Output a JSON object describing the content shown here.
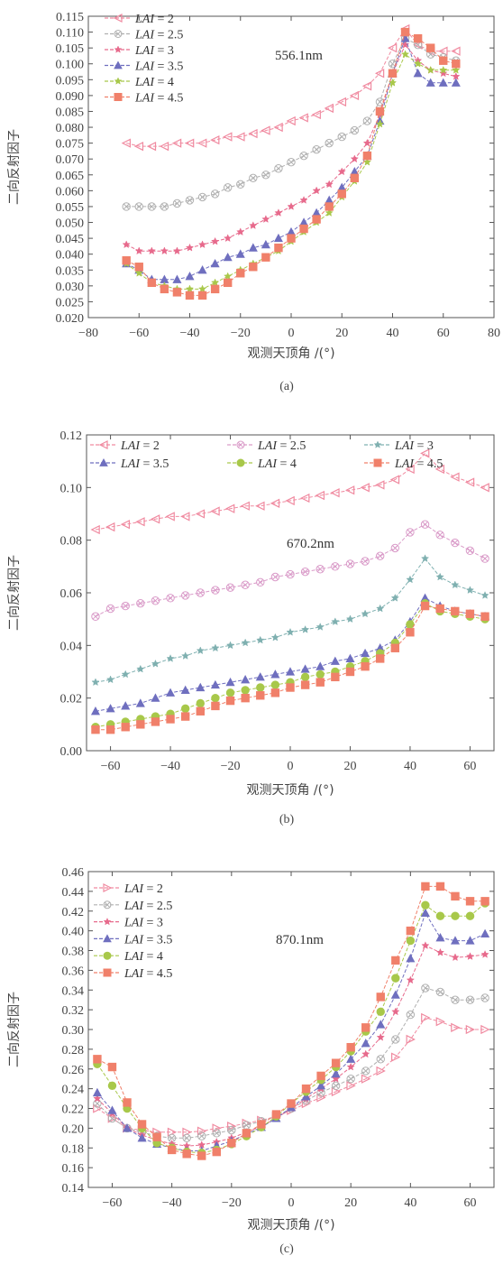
{
  "figure_captions": [
    "(a)",
    "(b)",
    "(c)"
  ],
  "chart_data": [
    {
      "type": "line",
      "annotation": "556.1nm",
      "xlabel": "观测天顶角 /(°)",
      "ylabel": "二向反射因子",
      "xlim": [
        -80,
        80
      ],
      "ylim": [
        0.02,
        0.115
      ],
      "xticks": [
        -80,
        -60,
        -40,
        -20,
        0,
        20,
        40,
        60,
        80
      ],
      "yticks": [
        0.02,
        0.025,
        0.03,
        0.035,
        0.04,
        0.045,
        0.05,
        0.055,
        0.06,
        0.065,
        0.07,
        0.075,
        0.08,
        0.085,
        0.09,
        0.095,
        0.1,
        0.105,
        0.11,
        0.115
      ],
      "legend_position": "top-left",
      "x": [
        -65,
        -60,
        -55,
        -50,
        -45,
        -40,
        -35,
        -30,
        -25,
        -20,
        -15,
        -10,
        -5,
        0,
        5,
        10,
        15,
        20,
        25,
        30,
        35,
        40,
        45,
        50,
        55,
        60,
        65
      ],
      "series": [
        {
          "name": "LAI = 2",
          "color": "#f08aa0",
          "marker": "tri-left",
          "values": [
            0.075,
            0.074,
            0.074,
            0.074,
            0.075,
            0.075,
            0.075,
            0.076,
            0.077,
            0.077,
            0.078,
            0.079,
            0.08,
            0.082,
            0.083,
            0.084,
            0.086,
            0.088,
            0.09,
            0.093,
            0.097,
            0.105,
            0.111,
            0.106,
            0.104,
            0.104,
            0.104
          ]
        },
        {
          "name": "LAI = 2.5",
          "color": "#b0b0b0",
          "marker": "x-circle",
          "values": [
            0.055,
            0.055,
            0.055,
            0.055,
            0.056,
            0.057,
            0.058,
            0.059,
            0.061,
            0.062,
            0.064,
            0.065,
            0.067,
            0.069,
            0.071,
            0.073,
            0.075,
            0.077,
            0.079,
            0.082,
            0.088,
            0.1,
            0.108,
            0.106,
            0.103,
            0.102,
            0.101
          ]
        },
        {
          "name": "LAI = 3",
          "color": "#e76a8c",
          "marker": "star",
          "values": [
            0.043,
            0.041,
            0.041,
            0.041,
            0.041,
            0.042,
            0.043,
            0.044,
            0.045,
            0.047,
            0.049,
            0.051,
            0.053,
            0.055,
            0.057,
            0.06,
            0.062,
            0.066,
            0.07,
            0.075,
            0.084,
            0.097,
            0.106,
            0.101,
            0.098,
            0.097,
            0.096
          ]
        },
        {
          "name": "LAI = 3.5",
          "color": "#6f6fbf",
          "marker": "triangle",
          "values": [
            0.037,
            0.035,
            0.032,
            0.032,
            0.032,
            0.033,
            0.035,
            0.037,
            0.039,
            0.04,
            0.042,
            0.043,
            0.045,
            0.047,
            0.05,
            0.053,
            0.057,
            0.061,
            0.066,
            0.071,
            0.082,
            0.097,
            0.108,
            0.097,
            0.094,
            0.094,
            0.094
          ]
        },
        {
          "name": "LAI = 4",
          "color": "#a8c84a",
          "marker": "star",
          "values": [
            0.037,
            0.034,
            0.031,
            0.03,
            0.029,
            0.029,
            0.029,
            0.031,
            0.033,
            0.035,
            0.037,
            0.039,
            0.041,
            0.044,
            0.047,
            0.05,
            0.053,
            0.058,
            0.063,
            0.069,
            0.081,
            0.094,
            0.103,
            0.1,
            0.098,
            0.098,
            0.098
          ]
        },
        {
          "name": "LAI = 4.5",
          "color": "#f0806a",
          "marker": "square",
          "values": [
            0.038,
            0.036,
            0.031,
            0.029,
            0.028,
            0.027,
            0.027,
            0.029,
            0.031,
            0.034,
            0.036,
            0.039,
            0.042,
            0.045,
            0.048,
            0.051,
            0.055,
            0.059,
            0.064,
            0.071,
            0.085,
            0.097,
            0.11,
            0.108,
            0.105,
            0.101,
            0.1
          ]
        }
      ]
    },
    {
      "type": "line",
      "annotation": "670.2nm",
      "xlabel": "观测天顶角 /(°)",
      "ylabel": "二向反射因子",
      "xlim": [
        -68,
        68
      ],
      "ylim": [
        0,
        0.12
      ],
      "xticks": [
        -60,
        -40,
        -20,
        0,
        20,
        40,
        60
      ],
      "yticks": [
        0.0,
        0.02,
        0.04,
        0.06,
        0.08,
        0.1,
        0.12
      ],
      "legend_position": "top",
      "x": [
        -65,
        -60,
        -55,
        -50,
        -45,
        -40,
        -35,
        -30,
        -25,
        -20,
        -15,
        -10,
        -5,
        0,
        5,
        10,
        15,
        20,
        25,
        30,
        35,
        40,
        45,
        50,
        55,
        60,
        65
      ],
      "series": [
        {
          "name": "LAI = 2",
          "color": "#f08aa0",
          "marker": "tri-left",
          "values": [
            0.084,
            0.085,
            0.086,
            0.087,
            0.088,
            0.089,
            0.089,
            0.09,
            0.091,
            0.092,
            0.093,
            0.093,
            0.094,
            0.095,
            0.096,
            0.097,
            0.098,
            0.099,
            0.1,
            0.101,
            0.103,
            0.107,
            0.113,
            0.107,
            0.104,
            0.102,
            0.1
          ]
        },
        {
          "name": "LAI = 2.5",
          "color": "#d99ac8",
          "marker": "x-circle",
          "values": [
            0.051,
            0.054,
            0.055,
            0.056,
            0.057,
            0.058,
            0.059,
            0.06,
            0.061,
            0.062,
            0.063,
            0.064,
            0.066,
            0.067,
            0.068,
            0.069,
            0.07,
            0.071,
            0.072,
            0.074,
            0.077,
            0.083,
            0.086,
            0.082,
            0.079,
            0.076,
            0.073
          ]
        },
        {
          "name": "LAI = 3",
          "color": "#7fb0b0",
          "marker": "star",
          "values": [
            0.026,
            0.027,
            0.029,
            0.031,
            0.033,
            0.035,
            0.036,
            0.038,
            0.039,
            0.04,
            0.041,
            0.042,
            0.043,
            0.045,
            0.046,
            0.047,
            0.049,
            0.05,
            0.052,
            0.054,
            0.058,
            0.065,
            0.073,
            0.066,
            0.063,
            0.061,
            0.059
          ]
        },
        {
          "name": "LAI = 3.5",
          "color": "#6f6fbf",
          "marker": "triangle",
          "values": [
            0.015,
            0.016,
            0.017,
            0.018,
            0.02,
            0.022,
            0.023,
            0.024,
            0.025,
            0.026,
            0.027,
            0.028,
            0.029,
            0.03,
            0.031,
            0.032,
            0.034,
            0.035,
            0.037,
            0.039,
            0.042,
            0.049,
            0.058,
            0.055,
            0.053,
            0.052,
            0.051
          ]
        },
        {
          "name": "LAI = 4",
          "color": "#a8c84a",
          "marker": "circle",
          "values": [
            0.009,
            0.01,
            0.011,
            0.012,
            0.013,
            0.014,
            0.016,
            0.018,
            0.02,
            0.022,
            0.023,
            0.024,
            0.025,
            0.026,
            0.028,
            0.029,
            0.03,
            0.032,
            0.034,
            0.037,
            0.041,
            0.048,
            0.056,
            0.053,
            0.052,
            0.051,
            0.05
          ]
        },
        {
          "name": "LAI = 4.5",
          "color": "#f0806a",
          "marker": "square",
          "values": [
            0.008,
            0.008,
            0.009,
            0.01,
            0.011,
            0.012,
            0.013,
            0.015,
            0.017,
            0.019,
            0.02,
            0.021,
            0.022,
            0.024,
            0.025,
            0.026,
            0.028,
            0.03,
            0.032,
            0.035,
            0.039,
            0.045,
            0.055,
            0.054,
            0.053,
            0.052,
            0.051
          ]
        }
      ]
    },
    {
      "type": "line",
      "annotation": "870.1nm",
      "xlabel": "观测天顶角 /(°)",
      "ylabel": "二向反射因子",
      "xlim": [
        -68,
        68
      ],
      "ylim": [
        0.14,
        0.46
      ],
      "xticks": [
        -60,
        -40,
        -20,
        0,
        20,
        40,
        60
      ],
      "yticks": [
        0.14,
        0.16,
        0.18,
        0.2,
        0.22,
        0.24,
        0.26,
        0.28,
        0.3,
        0.32,
        0.34,
        0.36,
        0.38,
        0.4,
        0.42,
        0.44,
        0.46
      ],
      "legend_position": "top-left",
      "x": [
        -65,
        -60,
        -55,
        -50,
        -45,
        -40,
        -35,
        -30,
        -25,
        -20,
        -15,
        -10,
        -5,
        0,
        5,
        10,
        15,
        20,
        25,
        30,
        35,
        40,
        45,
        50,
        55,
        60,
        65
      ],
      "series": [
        {
          "name": "LAI = 2",
          "color": "#f08aa0",
          "marker": "tri-right",
          "values": [
            0.22,
            0.21,
            0.2,
            0.198,
            0.196,
            0.196,
            0.196,
            0.197,
            0.2,
            0.202,
            0.205,
            0.208,
            0.212,
            0.218,
            0.225,
            0.231,
            0.237,
            0.243,
            0.25,
            0.258,
            0.272,
            0.29,
            0.312,
            0.308,
            0.302,
            0.3,
            0.3
          ]
        },
        {
          "name": "LAI = 2.5",
          "color": "#b0b0b0",
          "marker": "x-circle",
          "values": [
            0.225,
            0.21,
            0.2,
            0.196,
            0.192,
            0.19,
            0.19,
            0.192,
            0.195,
            0.198,
            0.203,
            0.207,
            0.212,
            0.22,
            0.228,
            0.236,
            0.243,
            0.25,
            0.258,
            0.27,
            0.29,
            0.315,
            0.342,
            0.338,
            0.33,
            0.33,
            0.332
          ]
        },
        {
          "name": "LAI = 3",
          "color": "#e76a8c",
          "marker": "star",
          "values": [
            0.23,
            0.215,
            0.2,
            0.193,
            0.188,
            0.184,
            0.182,
            0.183,
            0.186,
            0.19,
            0.196,
            0.202,
            0.21,
            0.22,
            0.23,
            0.24,
            0.25,
            0.262,
            0.275,
            0.292,
            0.318,
            0.35,
            0.385,
            0.378,
            0.373,
            0.374,
            0.376
          ]
        },
        {
          "name": "LAI = 3.5",
          "color": "#6f6fbf",
          "marker": "triangle",
          "values": [
            0.236,
            0.218,
            0.2,
            0.19,
            0.184,
            0.18,
            0.177,
            0.177,
            0.182,
            0.187,
            0.194,
            0.201,
            0.21,
            0.221,
            0.232,
            0.243,
            0.255,
            0.27,
            0.286,
            0.305,
            0.335,
            0.372,
            0.418,
            0.393,
            0.39,
            0.39,
            0.397
          ]
        },
        {
          "name": "LAI = 4",
          "color": "#a8c84a",
          "marker": "circle",
          "values": [
            0.265,
            0.243,
            0.22,
            0.2,
            0.185,
            0.18,
            0.176,
            0.175,
            0.178,
            0.184,
            0.192,
            0.201,
            0.212,
            0.225,
            0.237,
            0.249,
            0.262,
            0.278,
            0.298,
            0.318,
            0.352,
            0.39,
            0.426,
            0.415,
            0.415,
            0.415,
            0.428
          ]
        },
        {
          "name": "LAI = 4.5",
          "color": "#f0806a",
          "marker": "square",
          "values": [
            0.27,
            0.262,
            0.226,
            0.204,
            0.191,
            0.178,
            0.174,
            0.172,
            0.176,
            0.185,
            0.195,
            0.204,
            0.214,
            0.225,
            0.24,
            0.253,
            0.266,
            0.282,
            0.302,
            0.333,
            0.37,
            0.4,
            0.445,
            0.445,
            0.435,
            0.43,
            0.43
          ]
        }
      ]
    }
  ]
}
